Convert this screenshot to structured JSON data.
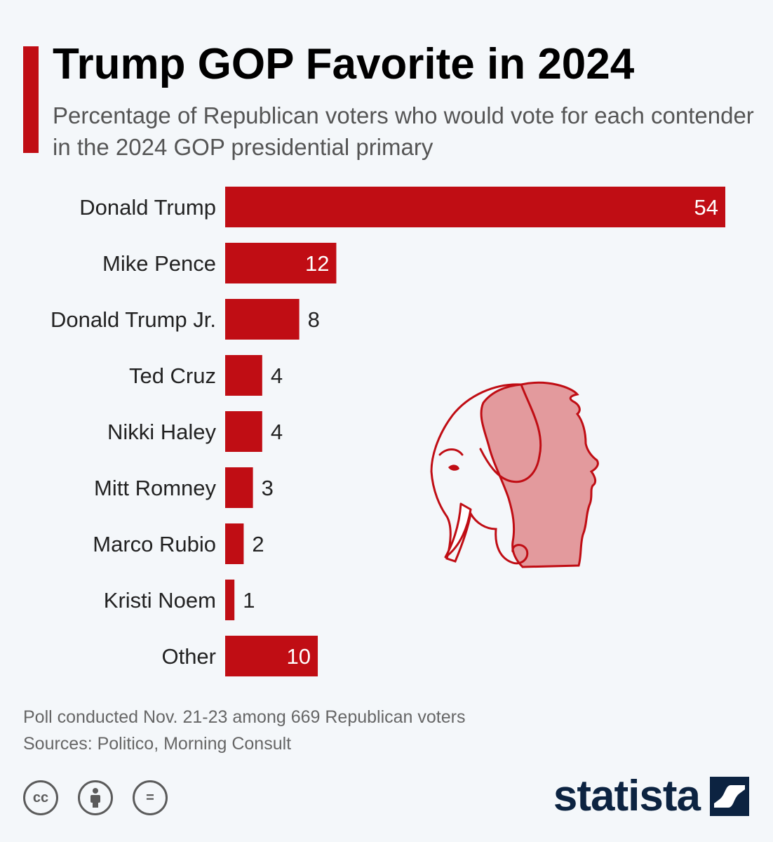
{
  "header": {
    "title": "Trump GOP Favorite in 2024",
    "subtitle": "Percentage of Republican voters who would vote for each contender in the 2024 GOP presidential primary"
  },
  "chart_data": {
    "type": "bar",
    "orientation": "horizontal",
    "title": "Trump GOP Favorite in 2024",
    "subtitle": "Percentage of Republican voters who would vote for each contender in the 2024 GOP presidential primary",
    "categories": [
      "Donald Trump",
      "Mike Pence",
      "Donald Trump Jr.",
      "Ted Cruz",
      "Nikki Haley",
      "Mitt Romney",
      "Marco Rubio",
      "Kristi Noem",
      "Other"
    ],
    "values": [
      54,
      12,
      8,
      4,
      4,
      3,
      2,
      1,
      10
    ],
    "xlim": [
      0,
      54
    ],
    "xlabel": "",
    "ylabel": "",
    "grid": false,
    "legend": "none"
  },
  "colors": {
    "bar": "#c00d14",
    "label_inside": "#ffffff",
    "label_outside": "#222222",
    "category_text": "#222222",
    "brand": "#0c2341"
  },
  "footer": {
    "note": "Poll conducted Nov. 21-23 among 669 Republican voters",
    "sources": "Sources: Politico, Morning Consult",
    "license_icons": [
      "cc-icon",
      "by-icon",
      "nd-icon"
    ],
    "license_labels": {
      "cc": "cc",
      "nd": "="
    },
    "brand": "statista"
  },
  "illustration": {
    "icon": "gop-elephant-trump-profile-icon"
  }
}
